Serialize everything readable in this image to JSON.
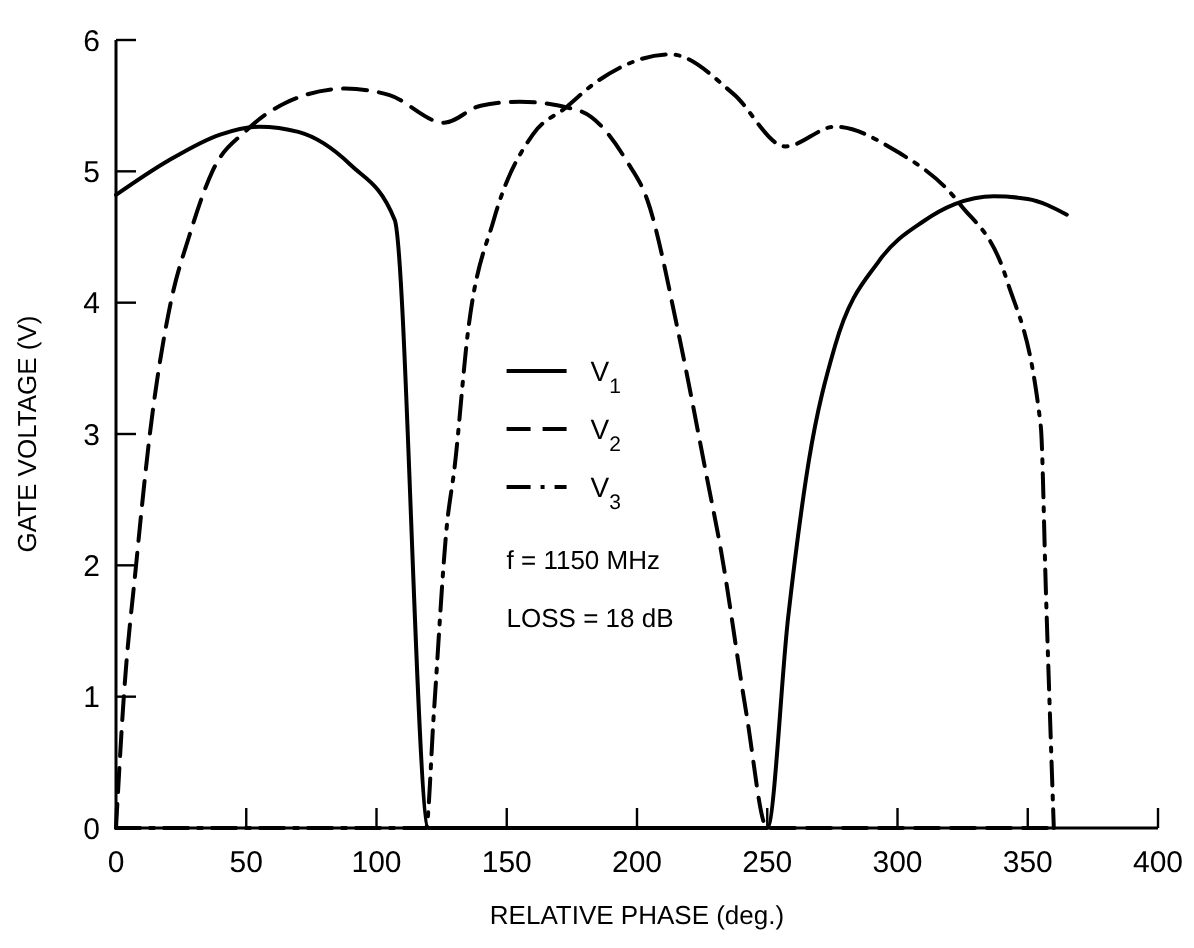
{
  "chart_data": {
    "type": "line",
    "xlabel": "RELATIVE PHASE (deg.)",
    "ylabel": "GATE VOLTAGE (V)",
    "xlim": [
      0,
      400
    ],
    "xticks": [
      0,
      50,
      100,
      150,
      200,
      250,
      300,
      350,
      400
    ],
    "ylim": [
      0,
      6
    ],
    "yticks": [
      0,
      1,
      2,
      3,
      4,
      5,
      6
    ],
    "grid": false,
    "legend": "center",
    "marker": "none",
    "series": [
      {
        "name": "V$_{1}$",
        "color": "#000000",
        "line_style": "solid",
        "x": [
          0,
          20,
          40,
          55,
          70,
          90,
          107,
          120,
          150,
          200,
          250,
          258,
          266,
          276,
          293,
          310,
          322,
          337,
          350,
          365
        ],
        "values": [
          4.82,
          5.08,
          5.28,
          5.34,
          5.3,
          5.05,
          4.63,
          0,
          0,
          0,
          0,
          1.6,
          2.8,
          3.67,
          4.32,
          4.62,
          4.75,
          4.81,
          4.79,
          4.67
        ]
      },
      {
        "name": "V$_{2}$",
        "color": "#000000",
        "line_style": "dashed",
        "x": [
          0,
          3,
          7.7,
          13,
          21,
          28,
          37,
          50,
          65,
          88,
          105,
          126,
          140,
          155,
          178,
          196,
          204,
          216,
          227,
          232,
          242,
          250,
          300,
          360
        ],
        "values": [
          0,
          1,
          2,
          3,
          4,
          4.5,
          5,
          5.31,
          5.52,
          5.63,
          5.58,
          5.37,
          5.5,
          5.53,
          5.46,
          5.08,
          4.78,
          3.76,
          2.65,
          2.14,
          0.87,
          0,
          0,
          0
        ]
      },
      {
        "name": "V$_{3}$",
        "color": "#000000",
        "line_style": "dashdot",
        "x": [
          0,
          60,
          119,
          122,
          127,
          130,
          135,
          145,
          160,
          173,
          183,
          213,
          237,
          257,
          276,
          299,
          324,
          342,
          355,
          357,
          360
        ],
        "values": [
          0,
          0,
          0,
          0.87,
          2.3,
          2.75,
          3.76,
          4.63,
          5.28,
          5.49,
          5.66,
          5.89,
          5.59,
          5.19,
          5.34,
          5.16,
          4.75,
          4.17,
          3.06,
          1.78,
          0
        ]
      }
    ],
    "annotations": [
      "f = 1150 MHz",
      "LOSS = 18 dB"
    ]
  }
}
